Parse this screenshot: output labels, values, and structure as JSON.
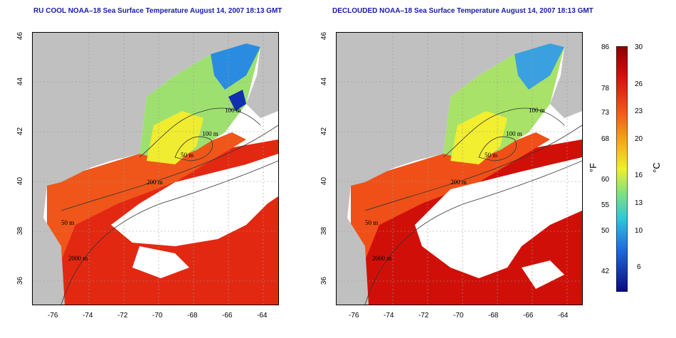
{
  "titles": {
    "left": "RU COOL NOAA–18 Sea Surface Temperature August 14, 2007 18:13 GMT",
    "right": "DECLOUDED NOAA–18 Sea Surface Temperature August 14, 2007 18:13 GMT"
  },
  "axes": {
    "lon_ticks": [
      "-76",
      "-74",
      "-72",
      "-70",
      "-68",
      "-66",
      "-64"
    ],
    "lat_ticks": [
      "46",
      "44",
      "42",
      "40",
      "38",
      "36"
    ]
  },
  "contour_labels": {
    "left": [
      "100 m",
      "100 m",
      "50 m",
      "200 m",
      "50 m",
      "2000 m"
    ],
    "right": [
      "100 m",
      "100 m",
      "50 m",
      "200 m",
      "50 m",
      "2000 m"
    ]
  },
  "colorbar": {
    "fahrenheit_ticks": [
      "86",
      "78",
      "73",
      "68",
      "60",
      "55",
      "50",
      "42"
    ],
    "celsius_ticks": [
      "30",
      "26",
      "23",
      "20",
      "16",
      "13",
      "10",
      "6"
    ],
    "unit_f": "°F",
    "unit_c": "°C"
  },
  "colors": {
    "land": "#c0c0c0",
    "cloud": "#ffffff",
    "title": "#1a1aa8"
  }
}
